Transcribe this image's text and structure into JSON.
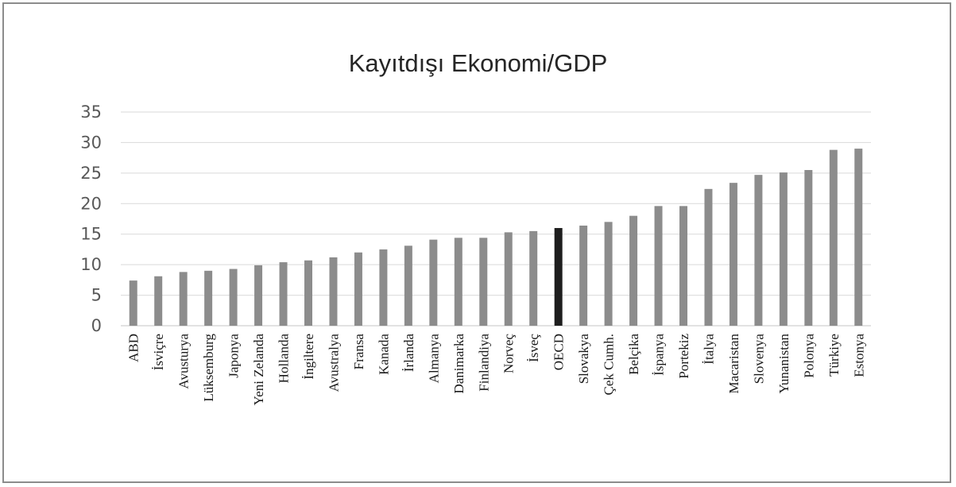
{
  "chart_data": {
    "type": "bar",
    "title": "Kayıtdışı Ekonomi/GDP",
    "xlabel": "",
    "ylabel": "",
    "ylim": [
      0,
      35
    ],
    "yticks": [
      0,
      5,
      10,
      15,
      20,
      25,
      30,
      35
    ],
    "grid": true,
    "legend": "none",
    "categories": [
      "ABD",
      "İsviçre",
      "Avusturya",
      "Lüksemburg",
      "Japonya",
      "Yeni Zelanda",
      "Hollanda",
      "İngiltere",
      "Avustralya",
      "Fransa",
      "Kanada",
      "İrlanda",
      "Almanya",
      "Danimarka",
      "Finlandiya",
      "Norveç",
      "İsveç",
      "OECD",
      "Slovakya",
      "Çek Cumh.",
      "Belçika",
      "İspanya",
      "Portekiz",
      "İtalya",
      "Macaristan",
      "Slovenya",
      "Yunanistan",
      "Polonya",
      "Türkiye",
      "Estonya"
    ],
    "values": [
      7.4,
      8.1,
      8.8,
      9.0,
      9.3,
      9.9,
      10.4,
      10.7,
      11.2,
      12.0,
      12.5,
      13.1,
      14.1,
      14.4,
      14.4,
      15.3,
      15.5,
      16.0,
      16.4,
      17.0,
      18.0,
      19.6,
      19.6,
      22.4,
      23.4,
      24.7,
      25.1,
      25.5,
      28.8,
      29.0
    ],
    "colors": {
      "bar": "#8c8c8c",
      "highlight": "#1e1e1e",
      "grid": "#d9d9d9"
    },
    "highlight_category": "OECD"
  }
}
